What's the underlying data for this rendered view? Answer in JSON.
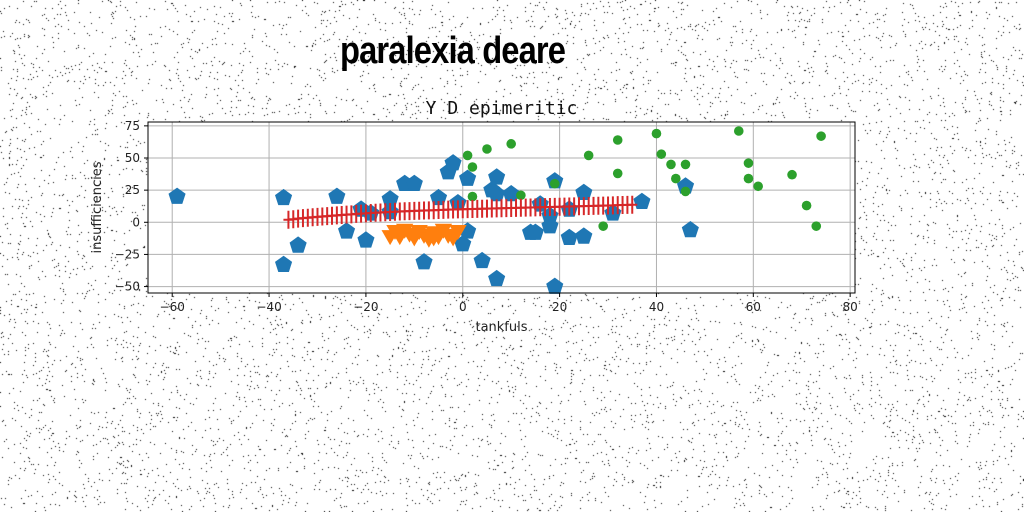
{
  "page": {
    "title": "paralexia deare"
  },
  "chart_data": {
    "type": "scatter",
    "title": "Y D epimeritic",
    "xlabel": "tankfuls",
    "ylabel": "insufficiencies",
    "xlim": [
      -65,
      81
    ],
    "ylim": [
      -55,
      78
    ],
    "xticks": [
      -60,
      -40,
      -20,
      0,
      20,
      40,
      60,
      80
    ],
    "yticks": [
      -50,
      -25,
      0,
      25,
      50,
      75
    ],
    "grid": true,
    "series": [
      {
        "marker": "pentagon",
        "color": "#1f77b4",
        "points": [
          [
            -59,
            20
          ],
          [
            -37,
            19
          ],
          [
            -37,
            -33
          ],
          [
            -34,
            -18
          ],
          [
            -26,
            20
          ],
          [
            -24,
            -7
          ],
          [
            -21,
            10
          ],
          [
            -20,
            -14
          ],
          [
            -19,
            7
          ],
          [
            -15,
            18
          ],
          [
            -15,
            8
          ],
          [
            -12,
            30
          ],
          [
            -10,
            30
          ],
          [
            -8,
            -31
          ],
          [
            -5,
            19
          ],
          [
            -3,
            39
          ],
          [
            -2,
            46
          ],
          [
            -1,
            15
          ],
          [
            0,
            -17
          ],
          [
            1,
            34
          ],
          [
            1,
            -7
          ],
          [
            4,
            -30
          ],
          [
            6,
            25
          ],
          [
            7,
            35
          ],
          [
            7,
            22
          ],
          [
            7,
            -44
          ],
          [
            10,
            22
          ],
          [
            14,
            -8
          ],
          [
            15,
            -8
          ],
          [
            16,
            14
          ],
          [
            18,
            5
          ],
          [
            18,
            -3
          ],
          [
            19,
            32
          ],
          [
            19,
            -50
          ],
          [
            22,
            10
          ],
          [
            22,
            -12
          ],
          [
            25,
            23
          ],
          [
            25,
            -11
          ],
          [
            31,
            7
          ],
          [
            37,
            16
          ],
          [
            46,
            28
          ],
          [
            47,
            -6
          ]
        ]
      },
      {
        "marker": "triangle-down",
        "color": "#ff7f0e",
        "points": [
          [
            -14,
            -6
          ],
          [
            -13,
            -10
          ],
          [
            -12,
            -5
          ],
          [
            -11,
            -8
          ],
          [
            -10,
            -11
          ],
          [
            -9,
            -6
          ],
          [
            -8,
            -9
          ],
          [
            -7,
            -12
          ],
          [
            -6,
            -7
          ],
          [
            -5,
            -10
          ],
          [
            -4,
            -5
          ],
          [
            -3,
            -9
          ],
          [
            -2,
            -11
          ],
          [
            -1,
            -6
          ],
          [
            -15,
            -10
          ],
          [
            -6,
            -11
          ]
        ]
      },
      {
        "marker": "circle",
        "color": "#2ca02c",
        "points": [
          [
            1,
            52
          ],
          [
            2,
            43
          ],
          [
            2,
            20
          ],
          [
            5,
            57
          ],
          [
            10,
            61
          ],
          [
            12,
            21
          ],
          [
            19,
            30
          ],
          [
            26,
            52
          ],
          [
            29,
            -3
          ],
          [
            32,
            64
          ],
          [
            32,
            38
          ],
          [
            40,
            69
          ],
          [
            41,
            53
          ],
          [
            43,
            45
          ],
          [
            44,
            34
          ],
          [
            46,
            45
          ],
          [
            46,
            24
          ],
          [
            57,
            71
          ],
          [
            59,
            46
          ],
          [
            59,
            34
          ],
          [
            61,
            28
          ],
          [
            68,
            37
          ],
          [
            71,
            13
          ],
          [
            73,
            -3
          ],
          [
            74,
            67
          ]
        ]
      },
      {
        "marker": "plus",
        "color": "#d62728",
        "points": [
          [
            -36,
            2
          ],
          [
            -35,
            2.4
          ],
          [
            -34,
            2.8
          ],
          [
            -33,
            3.2
          ],
          [
            -32,
            3.5
          ],
          [
            -31,
            3.9
          ],
          [
            -30,
            4.2
          ],
          [
            -29,
            4.5
          ],
          [
            -28,
            4.8
          ],
          [
            -27,
            5.1
          ],
          [
            -26,
            5.4
          ],
          [
            -25,
            5.7
          ],
          [
            -24,
            6
          ],
          [
            -23,
            6.2
          ],
          [
            -22,
            6.5
          ],
          [
            -21,
            6.7
          ],
          [
            -20,
            6.9
          ],
          [
            -19,
            7.2
          ],
          [
            -18,
            7.4
          ],
          [
            -17,
            7.6
          ],
          [
            -16,
            7.8
          ],
          [
            -15,
            8
          ],
          [
            -14,
            8.2
          ],
          [
            -13,
            8.4
          ],
          [
            -12,
            8.6
          ],
          [
            -11,
            8.7
          ],
          [
            -10,
            8.9
          ],
          [
            -9,
            9
          ],
          [
            -8,
            9.2
          ],
          [
            -7,
            9.3
          ],
          [
            -6,
            9.4
          ],
          [
            -5,
            9.6
          ],
          [
            -4,
            9.7
          ],
          [
            -3,
            9.8
          ],
          [
            -2,
            9.9
          ],
          [
            -1,
            10
          ],
          [
            0,
            10.1
          ],
          [
            1,
            10.2
          ],
          [
            2,
            10.3
          ],
          [
            3,
            10.4
          ],
          [
            4,
            10.5
          ],
          [
            5,
            10.6
          ],
          [
            6,
            10.7
          ],
          [
            7,
            10.8
          ],
          [
            8,
            10.9
          ],
          [
            9,
            11
          ],
          [
            10,
            11.1
          ],
          [
            11,
            11.2
          ],
          [
            12,
            11.3
          ],
          [
            13,
            11.4
          ],
          [
            14,
            11.5
          ],
          [
            15,
            11.6
          ],
          [
            16,
            11.7
          ],
          [
            17,
            11.8
          ],
          [
            18,
            11.9
          ],
          [
            19,
            12
          ],
          [
            20,
            12.1
          ],
          [
            21,
            12.2
          ],
          [
            22,
            12.3
          ],
          [
            23,
            12.4
          ],
          [
            24,
            12.5
          ],
          [
            25,
            12.6
          ],
          [
            26,
            12.7
          ],
          [
            27,
            12.8
          ],
          [
            28,
            12.9
          ],
          [
            29,
            13
          ],
          [
            30,
            13.1
          ],
          [
            31,
            13.2
          ],
          [
            32,
            13.3
          ],
          [
            33,
            13.4
          ],
          [
            34,
            13.5
          ],
          [
            35,
            13.6
          ]
        ]
      }
    ]
  }
}
